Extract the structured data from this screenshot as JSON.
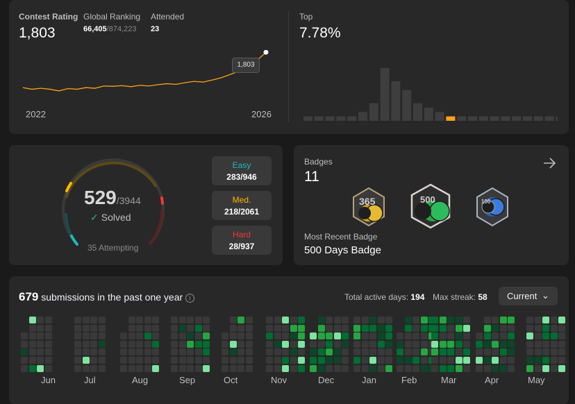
{
  "contest": {
    "rating_label": "Contest Rating",
    "rating_value": "1,803",
    "global_ranking_label": "Global Ranking",
    "global_ranking_value": "66,405",
    "global_ranking_total": "/874,223",
    "attended_label": "Attended",
    "attended_value": "23",
    "year_start": "2022",
    "year_end": "2026",
    "tooltip_value": "1,803",
    "line_points": [
      1695,
      1690,
      1693,
      1690,
      1685,
      1692,
      1690,
      1695,
      1693,
      1700,
      1699,
      1701,
      1698,
      1702,
      1700,
      1704,
      1707,
      1705,
      1710,
      1714,
      1712,
      1718,
      1725,
      1735,
      1745,
      1760,
      1778,
      1803
    ],
    "line_color": "#ffa116",
    "top_label": "Top",
    "top_value": "7.78%",
    "histogram": [
      1,
      1,
      1,
      1,
      1,
      2,
      4,
      12,
      9,
      7,
      4,
      3,
      2,
      1,
      1,
      1,
      1,
      1,
      1,
      1,
      1,
      1,
      1,
      1
    ],
    "histogram_highlight_index": 13
  },
  "solved": {
    "solved_count": "529",
    "total": "/3944",
    "solved_label": "Solved",
    "attempting": "35 Attempting",
    "easy_label": "Easy",
    "easy_value": "283/946",
    "easy_color": "#1cbaba",
    "med_label": "Med.",
    "med_value": "218/2061",
    "med_color": "#ffb700",
    "hard_label": "Hard",
    "hard_value": "28/937",
    "hard_color": "#f63737"
  },
  "badges": {
    "label": "Badges",
    "count": "11",
    "arrow_icon": "arrow-right-icon",
    "recent_label": "Most Recent Badge",
    "recent_value": "500 Days Badge",
    "items": [
      {
        "icon": "badge-365-days-icon",
        "text": "365",
        "color": "#d8a81c"
      },
      {
        "icon": "badge-500-days-icon",
        "text": "500",
        "color": "#2cbb5d"
      },
      {
        "icon": "badge-100-days-icon",
        "text": "100",
        "color": "#3b7ddd"
      }
    ]
  },
  "submissions": {
    "count": "679",
    "title_rest": "submissions in the past one year",
    "info_icon": "i",
    "active_days_label": "Total active days:",
    "active_days_value": "194",
    "max_streak_label": "Max streak:",
    "max_streak_value": "58",
    "dropdown_value": "Current",
    "dropdown_icon": "⌄",
    "months": [
      "Jun",
      "Jul",
      "Aug",
      "Sep",
      "Oct",
      "Nov",
      "Dec",
      "Jan",
      "Feb",
      "Mar",
      "Apr",
      "May"
    ],
    "colors": [
      "#393939",
      "#0e4429",
      "#006d32",
      "#26a641",
      "#7fe3a1"
    ]
  }
}
